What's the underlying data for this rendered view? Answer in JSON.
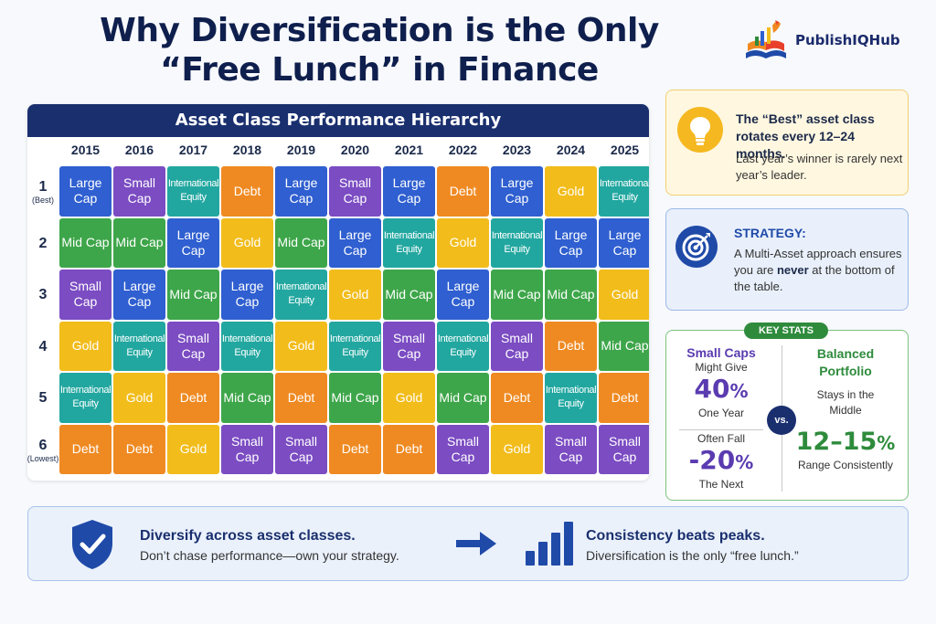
{
  "title": {
    "line1": "Why Diversification is the Only",
    "line2": "“Free Lunch” in Finance"
  },
  "brand": {
    "name": "PublishIQ",
    "hub": "Hub"
  },
  "table": {
    "title": "Asset Class Performance Hierarchy",
    "years": [
      "2015",
      "2016",
      "2017",
      "2018",
      "2019",
      "2020",
      "2021",
      "2022",
      "2023",
      "2024",
      "2025"
    ],
    "ranks": [
      {
        "num": "1",
        "sub": "(Best)"
      },
      {
        "num": "2",
        "sub": ""
      },
      {
        "num": "3",
        "sub": ""
      },
      {
        "num": "4",
        "sub": ""
      },
      {
        "num": "5",
        "sub": ""
      },
      {
        "num": "6",
        "sub": "(Lowest)"
      }
    ],
    "rows": [
      [
        "Large Cap",
        "Small Cap",
        "International Equity",
        "Debt",
        "Large Cap",
        "Small Cap",
        "Large Cap",
        "Debt",
        "Large Cap",
        "Gold",
        "International Equity"
      ],
      [
        "Mid Cap",
        "Mid Cap",
        "Large Cap",
        "Gold",
        "Mid Cap",
        "Large Cap",
        "International Equity",
        "Gold",
        "International Equity",
        "Large Cap",
        "Large Cap"
      ],
      [
        "Small Cap",
        "Large Cap",
        "Mid Cap",
        "Large Cap",
        "International Equity",
        "Gold",
        "Mid Cap",
        "Large Cap",
        "Mid Cap",
        "Mid Cap",
        "Gold"
      ],
      [
        "Gold",
        "International Equity",
        "Small Cap",
        "International Equity",
        "Gold",
        "International Equity",
        "Small Cap",
        "International Equity",
        "Small Cap",
        "Debt",
        "Mid Cap"
      ],
      [
        "International Equity",
        "Gold",
        "Debt",
        "Mid Cap",
        "Debt",
        "Mid Cap",
        "Gold",
        "Mid Cap",
        "Debt",
        "International Equity",
        "Debt"
      ],
      [
        "Debt",
        "Debt",
        "Gold",
        "Small Cap",
        "Small Cap",
        "Debt",
        "Debt",
        "Small Cap",
        "Gold",
        "Small Cap",
        "Small Cap"
      ]
    ],
    "colors": {
      "Large Cap": "#2f5fd0",
      "Mid Cap": "#3ea64a",
      "Small Cap": "#7b4cc2",
      "Gold": "#f2bc1b",
      "Debt": "#ef8a22",
      "International Equity": "#22a7a0"
    }
  },
  "card_rotation": {
    "icon": "lightbulb-icon",
    "headline": "The “Best” asset class rotates every 12–24 months.",
    "body": "Last year’s winner is rarely next year’s leader."
  },
  "card_strategy": {
    "icon": "target-icon",
    "heading": "STRATEGY:",
    "body_start": "A Multi-Asset approach ensures you are ",
    "body_bold": "never",
    "body_end": " at the bottom of the table."
  },
  "key_stats": {
    "badge": "KEY STATS",
    "left": {
      "label": "Small Caps",
      "might": "Might Give",
      "gain": "40",
      "gain_unit": "%",
      "gain_period": "One Year",
      "fall": "Often Fall",
      "loss": "-20",
      "loss_unit": "%",
      "loss_period": "The Next"
    },
    "vs": "vs.",
    "right": {
      "label_line1": "Balanced",
      "label_line2": "Portfolio",
      "stays_line1": "Stays in the",
      "stays_line2": "Middle",
      "range": "12–15",
      "range_unit": "%",
      "range_note": "Range Consistently"
    }
  },
  "banner": {
    "left_icon": "shield-check-icon",
    "left_head": "Diversify across asset classes.",
    "left_sub": "Don’t chase performance—own your strategy.",
    "arrow_icon": "right-arrow-icon",
    "right_icon": "bar-chart-icon",
    "right_head": "Consistency beats peaks.",
    "right_sub": "Diversification is the only “free lunch.”"
  }
}
